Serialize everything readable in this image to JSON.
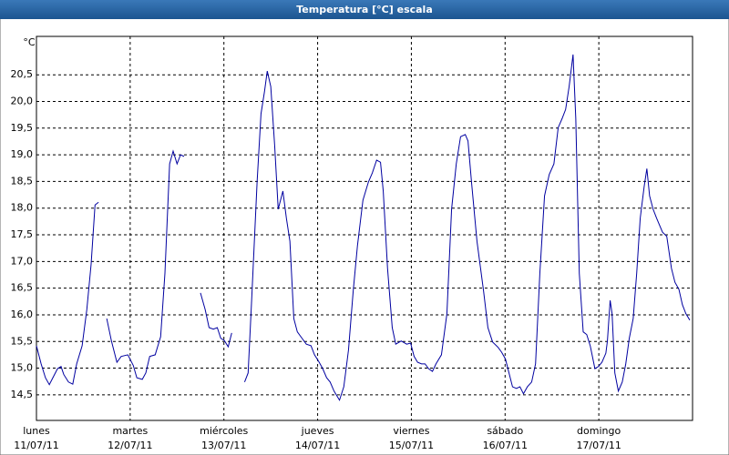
{
  "chart_data": {
    "type": "line",
    "title": "Temperatura [°C] escala",
    "y_unit": "°C",
    "xlim": [
      0,
      168
    ],
    "ylim": [
      14.02,
      21.22
    ],
    "grid": true,
    "xticks": [
      {
        "value": 0,
        "label": "lunes",
        "date": "11/07/11"
      },
      {
        "value": 24,
        "label": "martes",
        "date": "12/07/11"
      },
      {
        "value": 48,
        "label": "miércoles",
        "date": "13/07/11"
      },
      {
        "value": 72,
        "label": "jueves",
        "date": "14/07/11"
      },
      {
        "value": 96,
        "label": "viernes",
        "date": "15/07/11"
      },
      {
        "value": 120,
        "label": "sábado",
        "date": "16/07/11"
      },
      {
        "value": 144,
        "label": "domingo",
        "date": "17/07/11"
      }
    ],
    "yticks": [
      {
        "value": 14.5,
        "label": "14,5"
      },
      {
        "value": 15.0,
        "label": "15,0"
      },
      {
        "value": 15.5,
        "label": "15,5"
      },
      {
        "value": 16.0,
        "label": "16,0"
      },
      {
        "value": 16.5,
        "label": "16,5"
      },
      {
        "value": 17.0,
        "label": "17,0"
      },
      {
        "value": 17.5,
        "label": "17,5"
      },
      {
        "value": 18.0,
        "label": "18,0"
      },
      {
        "value": 18.5,
        "label": "18,5"
      },
      {
        "value": 19.0,
        "label": "19,0"
      },
      {
        "value": 19.5,
        "label": "19,5"
      },
      {
        "value": 20.0,
        "label": "20,0"
      },
      {
        "value": 20.5,
        "label": "20,5"
      }
    ],
    "x": [
      0,
      1.2,
      2.3,
      3.3,
      4.2,
      5.4,
      6.3,
      7.0,
      8.2,
      9.3,
      10.3,
      11.7,
      12.9,
      14.0,
      15.0,
      15.9,
      17.0,
      18.0,
      19.2,
      20.6,
      21.7,
      23.4,
      24.8,
      25.7,
      27.1,
      28.0,
      29.0,
      30.4,
      31.8,
      32.9,
      34.1,
      35.0,
      36.0,
      36.9,
      37.8,
      40.0,
      42.0,
      43.2,
      44.2,
      45.3,
      46.3,
      47.2,
      48.1,
      49.1,
      50.0,
      51.6,
      53.3,
      54.2,
      55.1,
      56.5,
      57.5,
      58.4,
      59.1,
      60.0,
      61.0,
      61.9,
      63.1,
      64.0,
      64.9,
      65.9,
      66.8,
      68.0,
      69.1,
      70.3,
      71.2,
      72.4,
      73.3,
      74.3,
      75.2,
      76.2,
      77.6,
      78.7,
      79.9,
      81.1,
      82.2,
      83.6,
      85.0,
      86.0,
      87.1,
      88.1,
      88.8,
      89.9,
      91.1,
      92.0,
      93.4,
      94.8,
      95.8,
      96.7,
      97.6,
      98.6,
      99.5,
      100.4,
      101.4,
      102.3,
      103.7,
      105.1,
      106.3,
      107.5,
      108.6,
      109.8,
      110.5,
      111.4,
      112.8,
      114.5,
      115.6,
      116.8,
      118.2,
      119.1,
      120.1,
      121.0,
      121.9,
      122.9,
      123.8,
      124.7,
      125.7,
      126.8,
      127.8,
      128.9,
      130.1,
      131.3,
      132.5,
      133.6,
      134.6,
      135.5,
      136.4,
      137.4,
      138.1,
      139.0,
      140.0,
      140.9,
      141.8,
      143.0,
      143.9,
      144.8,
      145.8,
      146.2,
      146.9,
      147.4,
      148.1,
      149.0,
      150.0,
      150.9,
      151.8,
      152.8,
      153.7,
      154.6,
      155.6,
      156.3,
      157.0,
      157.9,
      158.8,
      160.3,
      161.4,
      162.6,
      163.5,
      164.5,
      165.4,
      166.3,
      167.3
    ],
    "series": [
      {
        "name": "Temperatura",
        "color": "#0000a0",
        "values": [
          15.42,
          15.08,
          14.82,
          14.69,
          14.82,
          14.99,
          15.03,
          14.88,
          14.74,
          14.7,
          15.08,
          15.42,
          16.1,
          16.95,
          18.06,
          18.11,
          null,
          15.93,
          15.51,
          15.11,
          15.22,
          15.25,
          15.05,
          14.82,
          14.79,
          14.91,
          15.22,
          15.25,
          15.59,
          16.78,
          18.83,
          19.07,
          18.83,
          19.0,
          18.97,
          null,
          16.41,
          16.1,
          15.76,
          15.73,
          15.76,
          15.56,
          15.52,
          15.4,
          15.66,
          null,
          14.74,
          14.91,
          16.27,
          18.49,
          19.77,
          20.19,
          20.57,
          20.28,
          19.17,
          17.98,
          18.32,
          17.81,
          17.38,
          15.93,
          15.68,
          15.56,
          15.45,
          15.42,
          15.25,
          15.11,
          14.99,
          14.82,
          14.74,
          14.57,
          14.4,
          14.65,
          15.34,
          16.44,
          17.3,
          18.15,
          18.49,
          18.66,
          18.9,
          18.86,
          18.32,
          16.87,
          15.76,
          15.45,
          15.51,
          15.45,
          15.47,
          15.22,
          15.11,
          15.08,
          15.08,
          14.99,
          14.94,
          15.08,
          15.25,
          16.02,
          17.98,
          18.83,
          19.34,
          19.38,
          19.26,
          18.49,
          17.38,
          16.44,
          15.76,
          15.49,
          15.39,
          15.3,
          15.17,
          14.91,
          14.65,
          14.62,
          14.65,
          14.52,
          14.65,
          14.74,
          15.08,
          16.78,
          18.23,
          18.63,
          18.83,
          19.51,
          19.68,
          19.85,
          20.28,
          20.88,
          19.68,
          16.78,
          15.68,
          15.63,
          15.42,
          14.99,
          15.03,
          15.11,
          15.28,
          15.51,
          16.27,
          16.02,
          14.91,
          14.57,
          14.74,
          15.08,
          15.56,
          15.93,
          16.78,
          17.81,
          18.4,
          18.74,
          18.23,
          17.98,
          17.81,
          17.55,
          17.47,
          16.87,
          16.61,
          16.48,
          16.19,
          16.02,
          15.9
        ]
      }
    ]
  }
}
